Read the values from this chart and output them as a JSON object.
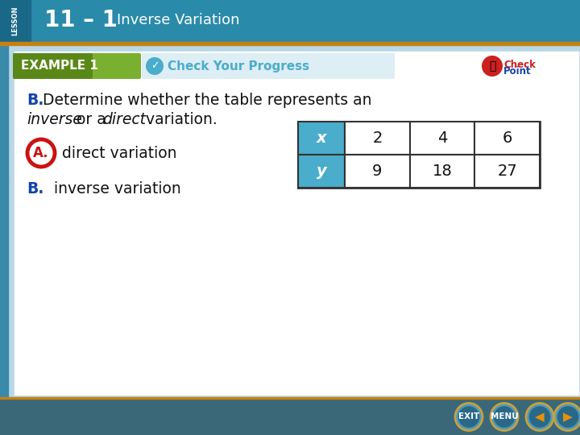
{
  "title_bar_color": "#2a7fa0",
  "title_bar_text": "11 – 1",
  "title_bar_subtext": "Inverse Variation",
  "lesson_label": "LESSON",
  "example_label": "EXAMPLE 1",
  "check_label": "Check Your Progress",
  "option_a_circle_color": "#cc1111",
  "option_a_text": "direct variation",
  "option_b_text": "B.",
  "option_b_rest": "  inverse variation",
  "table_header_color": "#4aadcc",
  "table_x_label": "x",
  "table_y_label": "y",
  "table_x_values": [
    "2",
    "4",
    "6"
  ],
  "table_y_values": [
    "9",
    "18",
    "27"
  ],
  "bg_top": "#2a8aaa",
  "bg_sidebar": "#3a9abb",
  "bg_main": "#b8d8e8",
  "bg_content": "#ffffff",
  "example_bg_dark": "#5a8a1a",
  "example_bg_light": "#8aba3a",
  "orange_line": "#c88010",
  "nav_bg": "#3a6878",
  "q_blue": "#1144aa",
  "q_black": "#111111"
}
